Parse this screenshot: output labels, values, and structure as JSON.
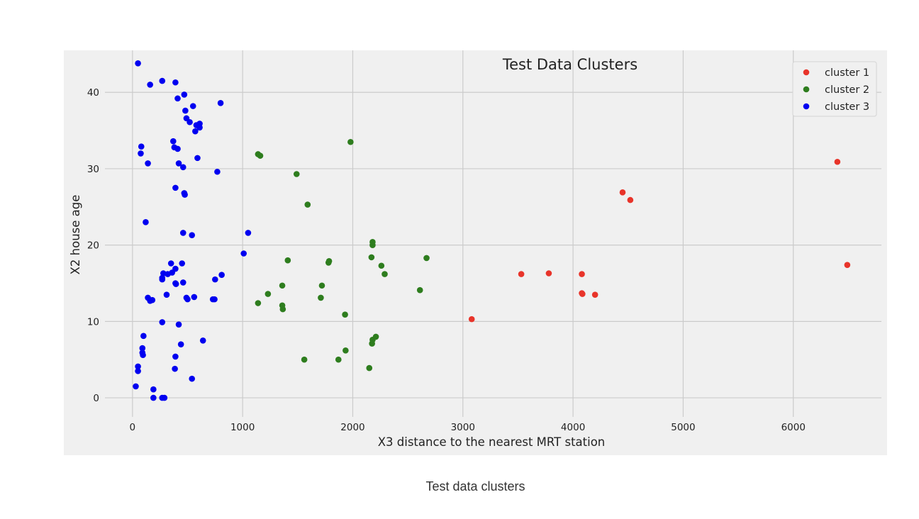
{
  "caption": "Test data clusters",
  "chart_data": {
    "type": "scatter",
    "title": "Test Data Clusters",
    "xlabel": "X3 distance to the nearest MRT station",
    "ylabel": "X2 house age",
    "xlim": [
      -250,
      6800
    ],
    "ylim": [
      -2.5,
      45.5
    ],
    "xticks": [
      0,
      1000,
      2000,
      3000,
      4000,
      5000,
      6000
    ],
    "yticks": [
      0,
      10,
      20,
      30,
      40
    ],
    "grid": true,
    "legend_position": "top-right",
    "series": [
      {
        "name": "cluster 1",
        "color": "#e8342a",
        "points": [
          [
            3080,
            10.3
          ],
          [
            3530,
            16.2
          ],
          [
            3780,
            16.3
          ],
          [
            4080,
            16.2
          ],
          [
            4080,
            13.7
          ],
          [
            4085,
            13.6
          ],
          [
            4200,
            13.5
          ],
          [
            4450,
            26.9
          ],
          [
            4520,
            25.9
          ],
          [
            6400,
            30.9
          ],
          [
            6490,
            17.4
          ]
        ]
      },
      {
        "name": "cluster 2",
        "color": "#2e7d1e",
        "points": [
          [
            1140,
            31.9
          ],
          [
            1160,
            31.7
          ],
          [
            1490,
            29.3
          ],
          [
            1590,
            25.3
          ],
          [
            1980,
            33.5
          ],
          [
            1140,
            12.4
          ],
          [
            1230,
            13.6
          ],
          [
            1360,
            14.7
          ],
          [
            1360,
            12.1
          ],
          [
            1365,
            11.6
          ],
          [
            1410,
            18.0
          ],
          [
            1560,
            5.0
          ],
          [
            1710,
            13.1
          ],
          [
            1720,
            14.7
          ],
          [
            1780,
            17.7
          ],
          [
            1785,
            17.9
          ],
          [
            1870,
            5.0
          ],
          [
            1930,
            10.9
          ],
          [
            1935,
            6.2
          ],
          [
            2150,
            3.9
          ],
          [
            2170,
            18.4
          ],
          [
            2180,
            20.0
          ],
          [
            2180,
            20.4
          ],
          [
            2175,
            7.1
          ],
          [
            2180,
            7.6
          ],
          [
            2210,
            8.0
          ],
          [
            2260,
            17.3
          ],
          [
            2290,
            16.2
          ],
          [
            2610,
            14.1
          ],
          [
            2670,
            18.3
          ]
        ]
      },
      {
        "name": "cluster 3",
        "color": "#0000f0",
        "points": [
          [
            50,
            43.8
          ],
          [
            160,
            41.0
          ],
          [
            270,
            41.5
          ],
          [
            390,
            41.3
          ],
          [
            410,
            39.2
          ],
          [
            470,
            39.7
          ],
          [
            550,
            38.2
          ],
          [
            800,
            38.6
          ],
          [
            480,
            37.6
          ],
          [
            490,
            36.6
          ],
          [
            520,
            36.1
          ],
          [
            580,
            35.7
          ],
          [
            610,
            35.9
          ],
          [
            610,
            35.4
          ],
          [
            570,
            34.9
          ],
          [
            370,
            33.6
          ],
          [
            80,
            32.9
          ],
          [
            75,
            32.0
          ],
          [
            380,
            32.8
          ],
          [
            410,
            32.6
          ],
          [
            420,
            30.7
          ],
          [
            460,
            30.2
          ],
          [
            590,
            31.4
          ],
          [
            140,
            30.7
          ],
          [
            770,
            29.6
          ],
          [
            390,
            27.5
          ],
          [
            470,
            26.8
          ],
          [
            475,
            26.6
          ],
          [
            120,
            23.0
          ],
          [
            460,
            21.6
          ],
          [
            540,
            21.3
          ],
          [
            1050,
            21.6
          ],
          [
            1010,
            18.9
          ],
          [
            350,
            17.6
          ],
          [
            450,
            17.6
          ],
          [
            390,
            16.9
          ],
          [
            360,
            16.4
          ],
          [
            280,
            16.3
          ],
          [
            270,
            15.7
          ],
          [
            270,
            15.5
          ],
          [
            320,
            16.2
          ],
          [
            390,
            15.0
          ],
          [
            395,
            14.9
          ],
          [
            460,
            15.1
          ],
          [
            750,
            15.5
          ],
          [
            810,
            16.1
          ],
          [
            140,
            13.1
          ],
          [
            160,
            12.7
          ],
          [
            180,
            12.8
          ],
          [
            310,
            13.5
          ],
          [
            490,
            13.1
          ],
          [
            500,
            12.9
          ],
          [
            560,
            13.2
          ],
          [
            730,
            12.9
          ],
          [
            745,
            12.9
          ],
          [
            270,
            9.9
          ],
          [
            420,
            9.6
          ],
          [
            100,
            8.1
          ],
          [
            90,
            6.5
          ],
          [
            90,
            5.9
          ],
          [
            95,
            5.6
          ],
          [
            440,
            7.0
          ],
          [
            640,
            7.5
          ],
          [
            390,
            5.4
          ],
          [
            50,
            4.1
          ],
          [
            50,
            3.5
          ],
          [
            385,
            3.8
          ],
          [
            540,
            2.5
          ],
          [
            30,
            1.5
          ],
          [
            190,
            1.1
          ],
          [
            190,
            0.0
          ],
          [
            270,
            0.0
          ],
          [
            290,
            0.0
          ]
        ]
      }
    ]
  }
}
